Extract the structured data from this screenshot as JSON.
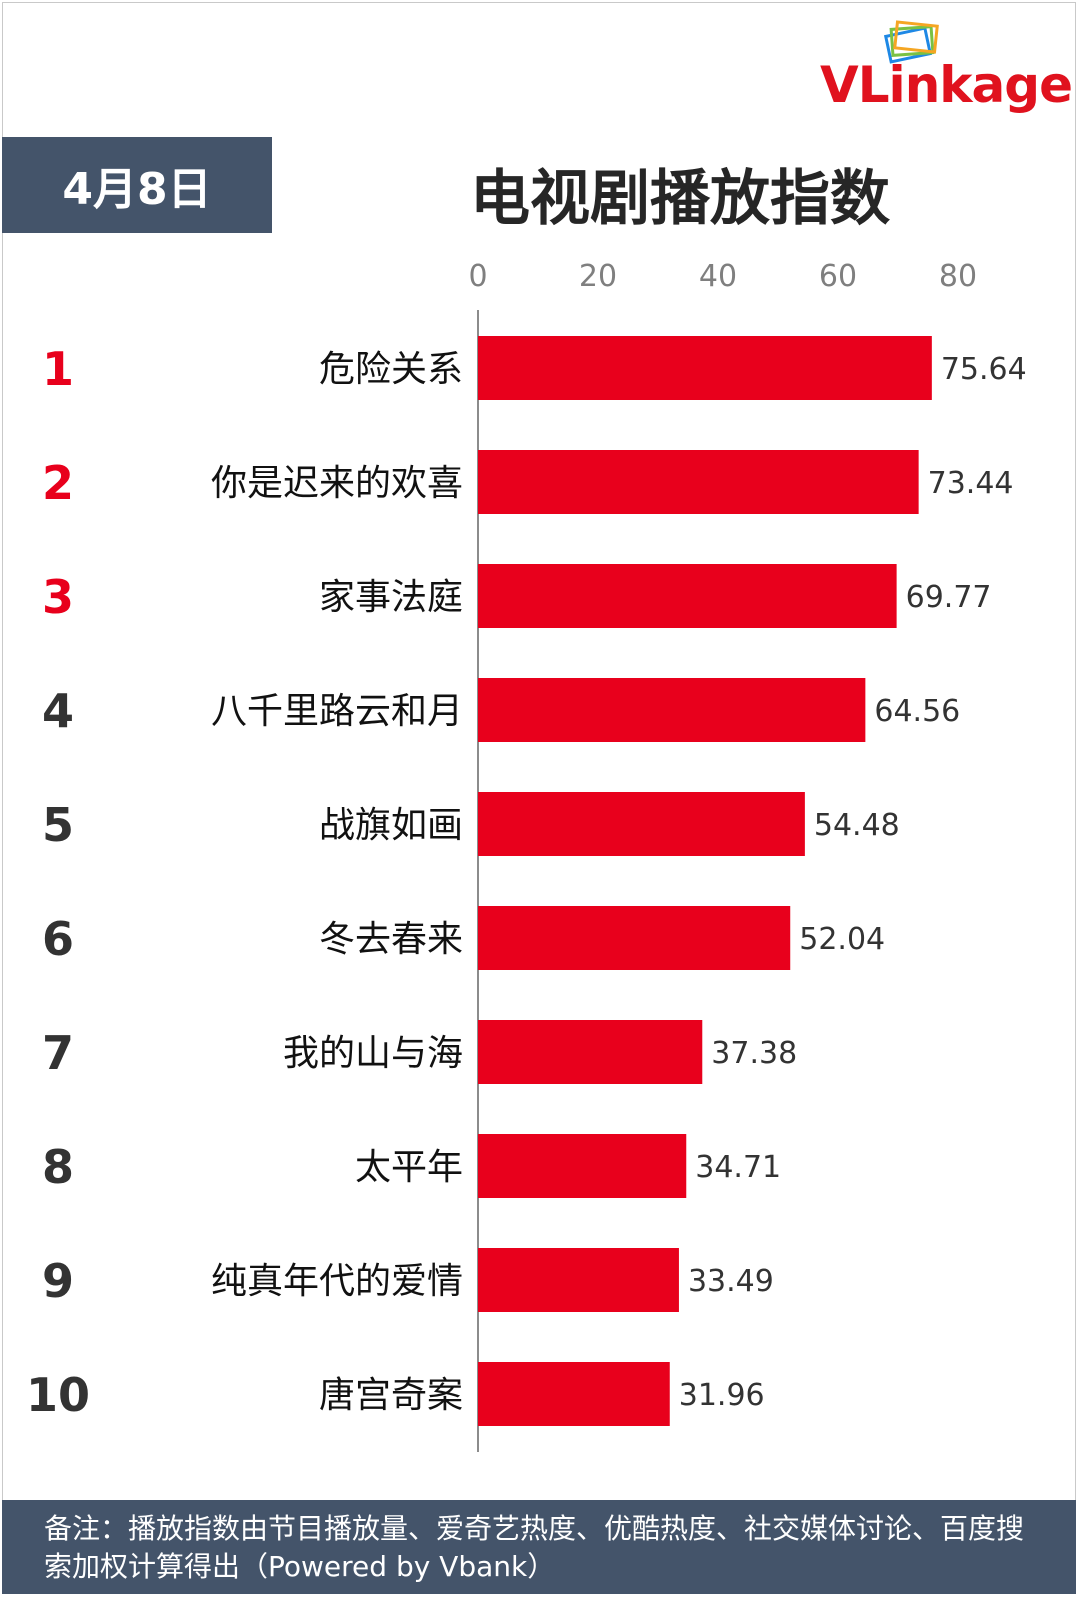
{
  "logo": {
    "text": "VLinkage",
    "colors": [
      "#e0121e",
      "#f5a623",
      "#7ac143",
      "#1e88e5"
    ]
  },
  "date": "4月8日",
  "title": "电视剧播放指数",
  "footer": "备注：播放指数由节目播放量、爱奇艺热度、优酷热度、社交媒体讨论、百度搜索加权计算得出（Powered by Vbank）",
  "colors": {
    "bar": "#e8001c",
    "rank_top": "#e8001c",
    "rank_other": "#333333",
    "header_bg": "#44546a"
  },
  "chart_data": {
    "type": "bar",
    "orientation": "horizontal",
    "title": "电视剧播放指数",
    "xlim": [
      0,
      80
    ],
    "xticks": [
      0,
      20,
      40,
      60,
      80
    ],
    "ranks": [
      "1",
      "2",
      "3",
      "4",
      "5",
      "6",
      "7",
      "8",
      "9",
      "10"
    ],
    "categories": [
      "危险关系",
      "你是迟来的欢喜",
      "家事法庭",
      "八千里路云和月",
      "战旗如画",
      "冬去春来",
      "我的山与海",
      "太平年",
      "纯真年代的爱情",
      "唐宫奇案"
    ],
    "values": [
      75.64,
      73.44,
      69.77,
      64.56,
      54.48,
      52.04,
      37.38,
      34.71,
      33.49,
      31.96
    ],
    "value_labels": [
      "75.64",
      "73.44",
      "69.77",
      "64.56",
      "54.48",
      "52.04",
      "37.38",
      "34.71",
      "33.49",
      "31.96"
    ],
    "grid": false,
    "legend": "none"
  }
}
